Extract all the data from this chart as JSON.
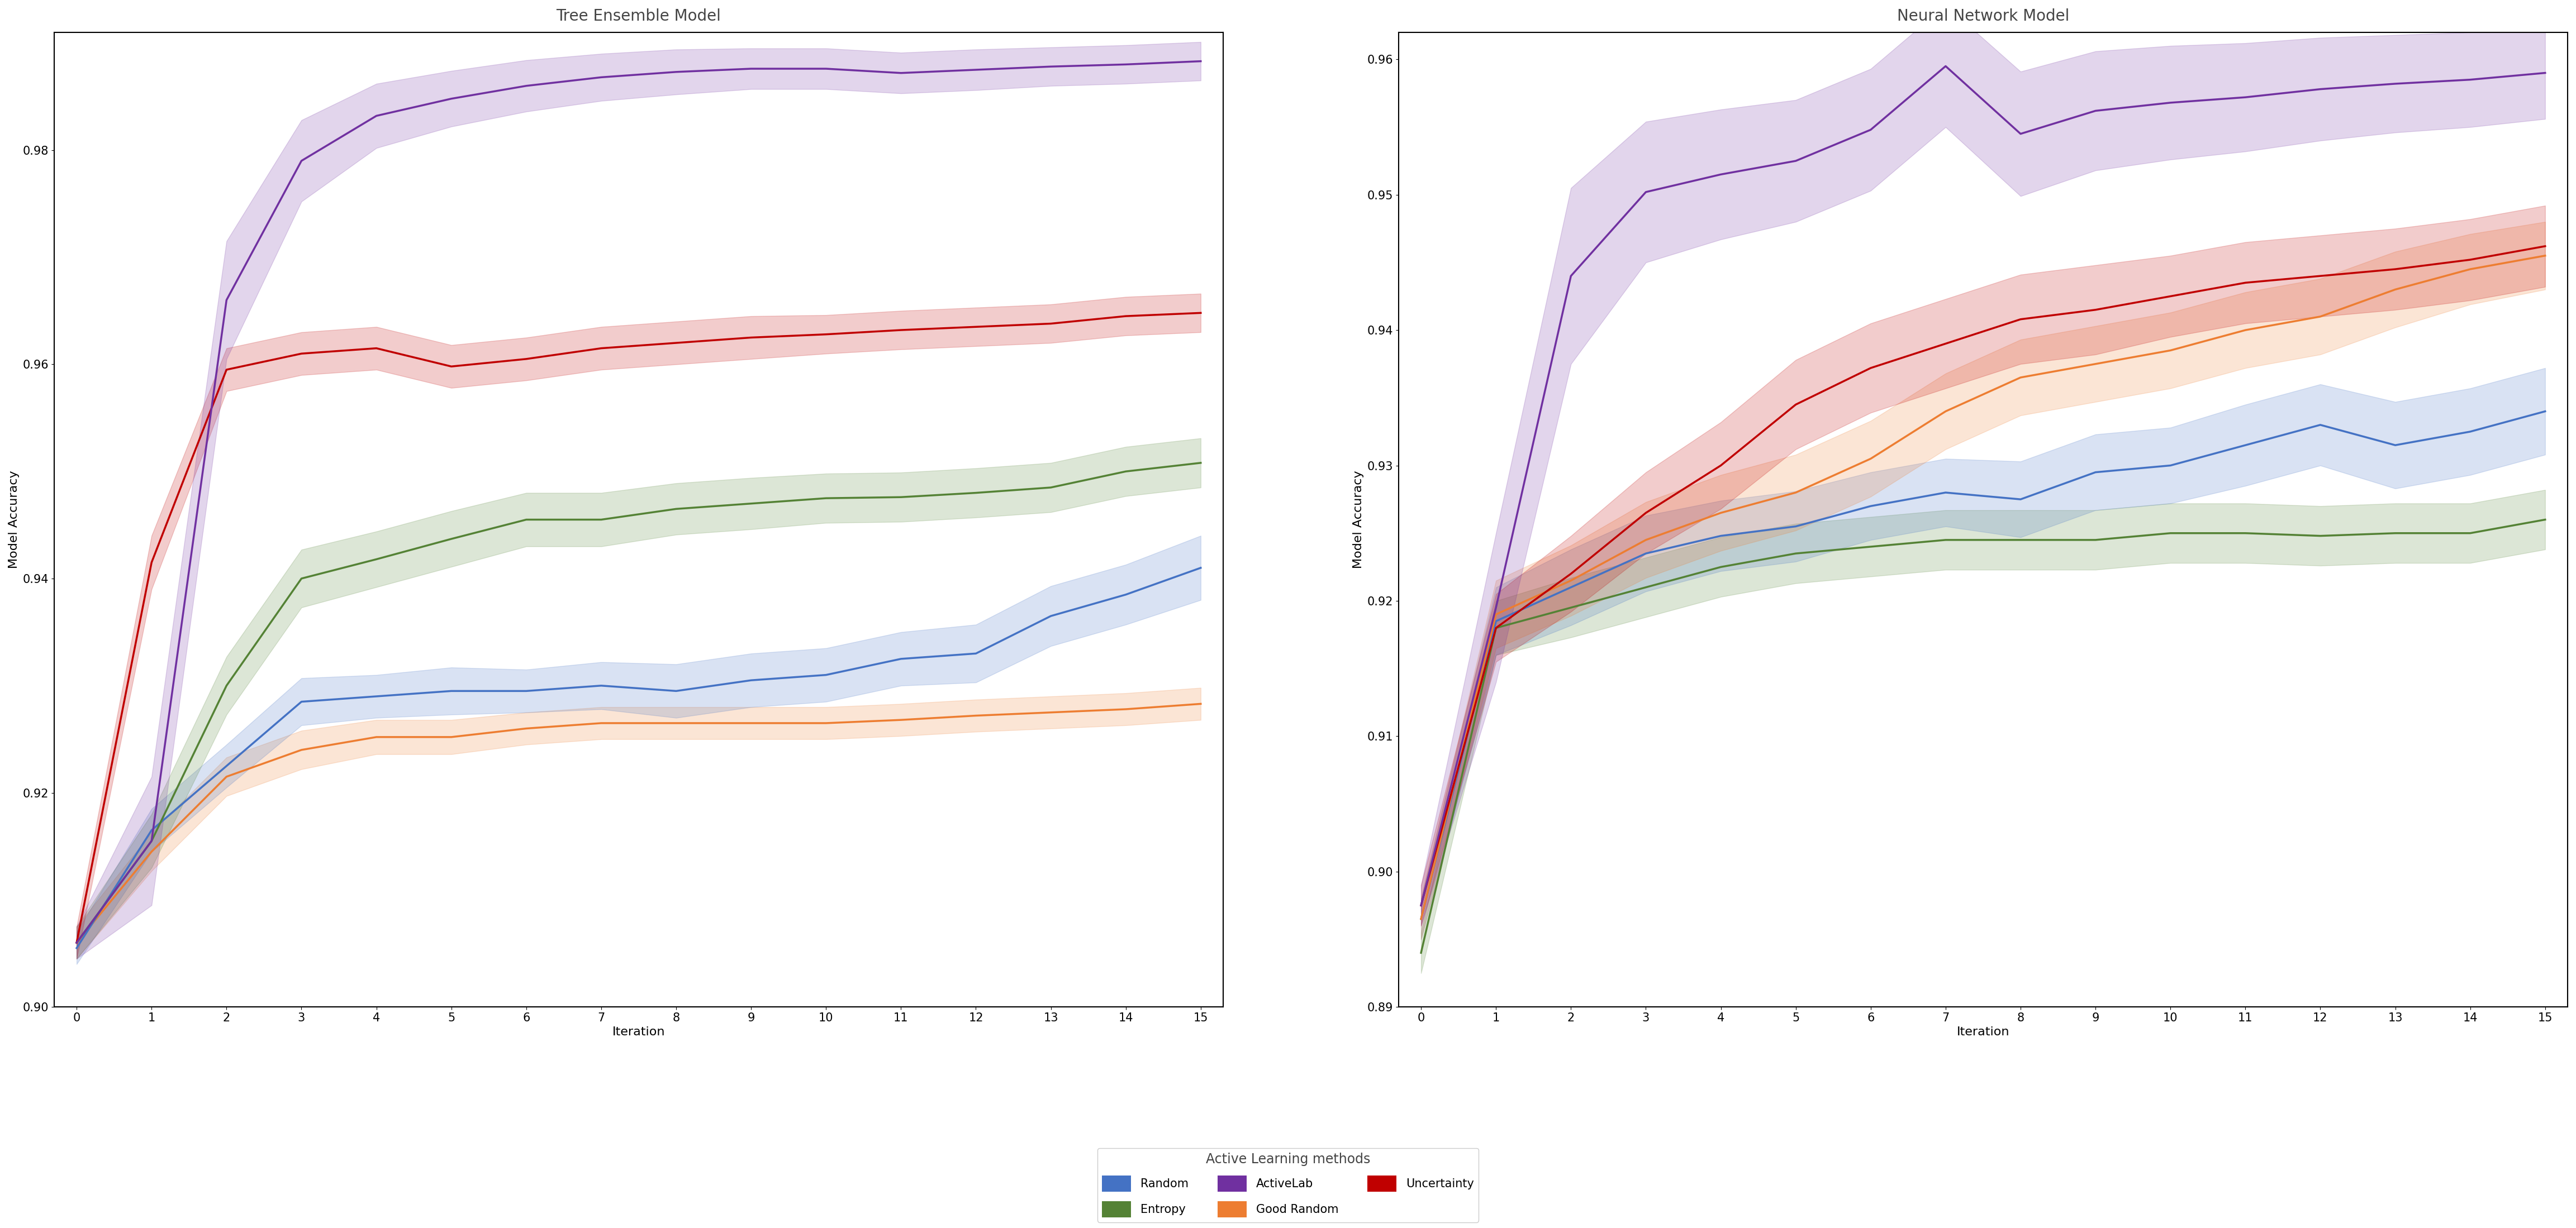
{
  "title_left": "Tree Ensemble Model",
  "title_right": "Neural Network Model",
  "xlabel": "Iteration",
  "ylabel": "Model Accuracy",
  "legend_title": "Active Learning methods",
  "xlim": [
    -0.3,
    15.3
  ],
  "iterations": [
    0,
    1,
    2,
    3,
    4,
    5,
    6,
    7,
    8,
    9,
    10,
    11,
    12,
    13,
    14,
    15
  ],
  "tree_random_mean": [
    0.9055,
    0.9165,
    0.9225,
    0.9285,
    0.929,
    0.9295,
    0.9295,
    0.93,
    0.9295,
    0.9305,
    0.931,
    0.9325,
    0.933,
    0.9365,
    0.9385,
    0.941
  ],
  "tree_random_std": [
    0.0015,
    0.002,
    0.002,
    0.0022,
    0.002,
    0.0022,
    0.002,
    0.0022,
    0.0025,
    0.0025,
    0.0025,
    0.0025,
    0.0027,
    0.0028,
    0.0028,
    0.003
  ],
  "tree_goodrandom_mean": [
    0.906,
    0.9145,
    0.9215,
    0.924,
    0.9252,
    0.9252,
    0.926,
    0.9265,
    0.9265,
    0.9265,
    0.9265,
    0.9268,
    0.9272,
    0.9275,
    0.9278,
    0.9283
  ],
  "tree_goodrandom_std": [
    0.0015,
    0.0018,
    0.0018,
    0.0018,
    0.0016,
    0.0016,
    0.0015,
    0.0015,
    0.0015,
    0.0015,
    0.0015,
    0.0015,
    0.0015,
    0.0015,
    0.0015,
    0.0015
  ],
  "tree_entropy_mean": [
    0.906,
    0.9155,
    0.93,
    0.94,
    0.9418,
    0.9437,
    0.9455,
    0.9455,
    0.9465,
    0.947,
    0.9475,
    0.9476,
    0.948,
    0.9485,
    0.95,
    0.9508
  ],
  "tree_entropy_std": [
    0.0015,
    0.0025,
    0.0027,
    0.0027,
    0.0026,
    0.0026,
    0.0025,
    0.0025,
    0.0024,
    0.0024,
    0.0023,
    0.0023,
    0.0023,
    0.0023,
    0.0023,
    0.0023
  ],
  "tree_uncertainty_mean": [
    0.906,
    0.9415,
    0.9595,
    0.961,
    0.9615,
    0.9598,
    0.9605,
    0.9615,
    0.962,
    0.9625,
    0.9628,
    0.9632,
    0.9635,
    0.9638,
    0.9645,
    0.9648
  ],
  "tree_uncertainty_std": [
    0.0015,
    0.0025,
    0.002,
    0.002,
    0.002,
    0.002,
    0.002,
    0.002,
    0.002,
    0.002,
    0.0018,
    0.0018,
    0.0018,
    0.0018,
    0.0018,
    0.0018
  ],
  "tree_activelab_mean": [
    0.906,
    0.9155,
    0.966,
    0.979,
    0.9832,
    0.9848,
    0.986,
    0.9868,
    0.9873,
    0.9876,
    0.9876,
    0.9872,
    0.9875,
    0.9878,
    0.988,
    0.9883
  ],
  "tree_activelab_std": [
    0.0015,
    0.006,
    0.0055,
    0.0038,
    0.003,
    0.0026,
    0.0024,
    0.0022,
    0.0021,
    0.0019,
    0.0019,
    0.0019,
    0.0019,
    0.0018,
    0.0018,
    0.0018
  ],
  "nn_random_mean": [
    0.8965,
    0.9185,
    0.921,
    0.9235,
    0.9248,
    0.9255,
    0.927,
    0.928,
    0.9275,
    0.9295,
    0.93,
    0.9315,
    0.933,
    0.9315,
    0.9325,
    0.934
  ],
  "nn_random_std": [
    0.0015,
    0.0025,
    0.0028,
    0.0028,
    0.0026,
    0.0026,
    0.0025,
    0.0025,
    0.0028,
    0.0028,
    0.0028,
    0.003,
    0.003,
    0.0032,
    0.0032,
    0.0032
  ],
  "nn_goodrandom_mean": [
    0.8965,
    0.919,
    0.9215,
    0.9245,
    0.9265,
    0.928,
    0.9305,
    0.934,
    0.9365,
    0.9375,
    0.9385,
    0.94,
    0.941,
    0.943,
    0.9445,
    0.9455
  ],
  "nn_goodrandom_std": [
    0.0015,
    0.0025,
    0.0026,
    0.0028,
    0.0028,
    0.0028,
    0.0028,
    0.0028,
    0.0028,
    0.0028,
    0.0028,
    0.0028,
    0.0028,
    0.0028,
    0.0026,
    0.0025
  ],
  "nn_entropy_mean": [
    0.894,
    0.918,
    0.9195,
    0.921,
    0.9225,
    0.9235,
    0.924,
    0.9245,
    0.9245,
    0.9245,
    0.925,
    0.925,
    0.9248,
    0.925,
    0.925,
    0.926
  ],
  "nn_entropy_std": [
    0.0015,
    0.002,
    0.0022,
    0.0022,
    0.0022,
    0.0022,
    0.0022,
    0.0022,
    0.0022,
    0.0022,
    0.0022,
    0.0022,
    0.0022,
    0.0022,
    0.0022,
    0.0022
  ],
  "nn_uncertainty_mean": [
    0.8975,
    0.918,
    0.922,
    0.9265,
    0.93,
    0.9345,
    0.9372,
    0.939,
    0.9408,
    0.9415,
    0.9425,
    0.9435,
    0.944,
    0.9445,
    0.9452,
    0.9462
  ],
  "nn_uncertainty_std": [
    0.0015,
    0.0025,
    0.0028,
    0.003,
    0.0032,
    0.0033,
    0.0033,
    0.0033,
    0.0033,
    0.0033,
    0.003,
    0.003,
    0.003,
    0.003,
    0.003,
    0.003
  ],
  "nn_activelab_mean": [
    0.8975,
    0.9195,
    0.944,
    0.9502,
    0.9515,
    0.9525,
    0.9548,
    0.9595,
    0.9545,
    0.9562,
    0.9568,
    0.9572,
    0.9578,
    0.9582,
    0.9585,
    0.959
  ],
  "nn_activelab_std": [
    0.0015,
    0.0055,
    0.0065,
    0.0052,
    0.0048,
    0.0045,
    0.0045,
    0.0045,
    0.0046,
    0.0044,
    0.0042,
    0.004,
    0.0038,
    0.0036,
    0.0035,
    0.0034
  ],
  "color_random": "#4472c4",
  "color_goodrandom": "#ed7d31",
  "color_entropy": "#548235",
  "color_uncertainty": "#c00000",
  "color_activelab": "#7030a0",
  "ylim_left": [
    0.9,
    0.991
  ],
  "ylim_right": [
    0.89,
    0.962
  ],
  "yticks_left": [
    0.9,
    0.92,
    0.94,
    0.96,
    0.98
  ],
  "yticks_right": [
    0.89,
    0.9,
    0.91,
    0.92,
    0.93,
    0.94,
    0.95,
    0.96
  ],
  "legend_entries": [
    "Random",
    "Entropy",
    "ActiveLab",
    "Good Random",
    "Uncertainty"
  ],
  "background_color": "#ffffff",
  "title_fontsize": 20,
  "label_fontsize": 16,
  "tick_fontsize": 15,
  "legend_title_fontsize": 17,
  "legend_fontsize": 15
}
